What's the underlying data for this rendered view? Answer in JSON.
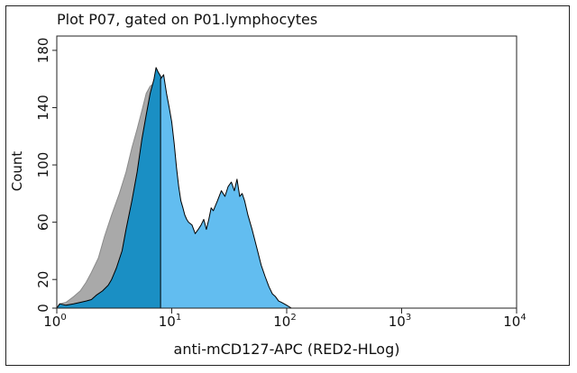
{
  "chart_data": {
    "type": "area",
    "title": "Plot P07, gated on P01.lymphocytes",
    "xlabel": "anti-mCD127-APC (RED2-HLog)",
    "ylabel": "Count",
    "x_scale": "log",
    "xlim": [
      1,
      10000
    ],
    "ylim": [
      0,
      190
    ],
    "grid": false,
    "legend": "none",
    "x_ticks": [
      {
        "value": 1,
        "base": "10",
        "exp": "0"
      },
      {
        "value": 10,
        "base": "10",
        "exp": "1"
      },
      {
        "value": 100,
        "base": "10",
        "exp": "2"
      },
      {
        "value": 1000,
        "base": "10",
        "exp": "3"
      },
      {
        "value": 10000,
        "base": "10",
        "exp": "4"
      }
    ],
    "y_ticks": [
      {
        "value": 0,
        "label": "0"
      },
      {
        "value": 20,
        "label": "20"
      },
      {
        "value": 60,
        "label": "60"
      },
      {
        "value": 100,
        "label": "100"
      },
      {
        "value": 140,
        "label": "140"
      },
      {
        "value": 180,
        "label": "180"
      }
    ],
    "series": [
      {
        "color": "#a9a9a9",
        "outline": "#8a8a8a",
        "x": [
          1.0,
          1.06,
          1.2,
          1.4,
          1.6,
          1.8,
          2.0,
          2.3,
          2.6,
          3.0,
          3.5,
          4.0,
          4.5,
          5.0,
          5.5,
          6.0,
          6.5,
          7.0,
          7.5,
          8.0,
          8.5,
          9.0,
          9.5,
          10.0,
          11.0,
          12.0,
          14.0
        ],
        "y": [
          0,
          3,
          4,
          8,
          12,
          18,
          25,
          35,
          50,
          65,
          80,
          95,
          112,
          125,
          138,
          150,
          155,
          157,
          150,
          140,
          125,
          105,
          85,
          65,
          40,
          20,
          0
        ]
      },
      {
        "color": "#1a8fc4",
        "outline": "#000000",
        "x": [
          1.0,
          1.06,
          1.2,
          1.4,
          1.6,
          1.8,
          2.0,
          2.2,
          2.5,
          2.8,
          3.0,
          3.3,
          3.7,
          4.0,
          4.5,
          5.0,
          5.5,
          6.0,
          6.5,
          7.0,
          7.3,
          7.6,
          8.0,
          8.3,
          8.6,
          9.0,
          9.5,
          10.0,
          10.5,
          11.0,
          12.0,
          13.0,
          14.0,
          16.0,
          18.0
        ],
        "y": [
          0,
          3,
          2,
          3,
          4,
          5,
          6,
          9,
          12,
          16,
          20,
          28,
          40,
          55,
          75,
          95,
          118,
          135,
          150,
          160,
          168,
          165,
          162,
          155,
          145,
          135,
          120,
          100,
          80,
          62,
          40,
          22,
          12,
          5,
          0
        ]
      },
      {
        "color": "#62bdf0",
        "outline": "#000000",
        "x": [
          8.0,
          8.5,
          9.0,
          9.5,
          10.0,
          10.5,
          11.0,
          11.5,
          12.0,
          12.5,
          13.0,
          13.5,
          14.0,
          15.0,
          16.0,
          17.0,
          18.0,
          19.0,
          20.0,
          21.0,
          22.0,
          23.0,
          25.0,
          27.0,
          29.0,
          31.0,
          33.0,
          35.0,
          37.0,
          39.0,
          41.0,
          43.0,
          46.0,
          50.0,
          55.0,
          60.0,
          65.0,
          70.0,
          75.0,
          80.0,
          85.0,
          90.0,
          95.0,
          100.0,
          110.0
        ],
        "y": [
          160,
          163,
          150,
          140,
          130,
          115,
          98,
          85,
          75,
          70,
          65,
          62,
          60,
          58,
          52,
          55,
          58,
          62,
          55,
          62,
          70,
          68,
          75,
          82,
          78,
          85,
          88,
          82,
          90,
          78,
          80,
          75,
          65,
          55,
          42,
          30,
          22,
          15,
          10,
          8,
          5,
          4,
          3,
          2,
          0
        ]
      }
    ]
  }
}
